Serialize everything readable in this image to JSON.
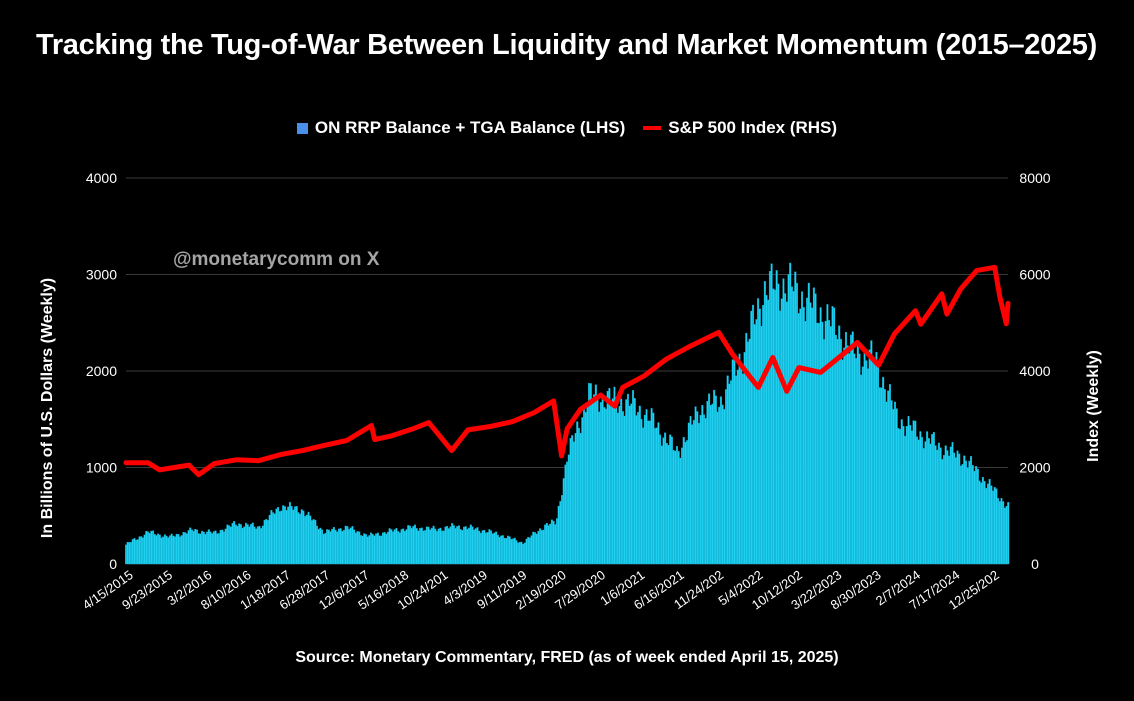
{
  "chart_data": {
    "type": "bar",
    "title": "Tracking the Tug-of-War Between Liquidity and Market Momentum (2015–2025)",
    "ylabel": "In Billions of U.S. Dollars (Weekly)",
    "y2label": "Index (Weekly)",
    "ylim": [
      0,
      4000
    ],
    "y2lim": [
      0,
      8000
    ],
    "yticks": [
      "0",
      "1000",
      "2000",
      "3000",
      "4000"
    ],
    "y2ticks": [
      "0",
      "2000",
      "4000",
      "6000",
      "8000"
    ],
    "xtick_labels": [
      "4/15/2015",
      "9/23/2015",
      "3/2/2016",
      "8/10/2016",
      "1/18/2017",
      "6/28/2017",
      "12/6/2017",
      "5/16/2018",
      "10/24/201",
      "4/3/2019",
      "9/11/2019",
      "2/19/2020",
      "7/29/2020",
      "1/6/2021",
      "6/16/2021",
      "11/24/202",
      "5/4/2022",
      "10/12/202",
      "3/22/2023",
      "8/30/2023",
      "2/7/2024",
      "7/17/2024",
      "12/25/202"
    ],
    "grid": true,
    "legend_position": "top-center",
    "x_range": [
      "4/15/2015",
      "4/15/2025"
    ],
    "series": [
      {
        "name": "ON RRP Balance + TGA Balance (LHS)",
        "type": "bar",
        "axis": "left",
        "color": "#1fd0f0",
        "x": [
          "4/15/2015",
          "7/15/2015",
          "10/15/2015",
          "1/15/2016",
          "4/15/2016",
          "7/15/2016",
          "10/15/2016",
          "1/15/2017",
          "4/15/2017",
          "7/15/2017",
          "10/15/2017",
          "1/15/2018",
          "4/15/2018",
          "7/15/2018",
          "10/15/2018",
          "1/15/2019",
          "4/15/2019",
          "7/15/2019",
          "10/15/2019",
          "1/15/2020",
          "3/1/2020",
          "4/15/2020",
          "7/15/2020",
          "10/15/2020",
          "1/15/2021",
          "4/15/2021",
          "7/15/2021",
          "10/15/2021",
          "1/15/2022",
          "4/15/2022",
          "7/15/2022",
          "10/15/2022",
          "1/15/2023",
          "4/15/2023",
          "7/15/2023",
          "10/15/2023",
          "1/15/2024",
          "4/15/2024",
          "7/15/2024",
          "10/15/2024",
          "1/15/2025",
          "4/15/2025"
        ],
        "values": [
          200,
          330,
          280,
          350,
          320,
          420,
          380,
          600,
          560,
          330,
          380,
          290,
          340,
          380,
          360,
          390,
          360,
          300,
          220,
          400,
          430,
          1100,
          1750,
          1700,
          1650,
          1450,
          1150,
          1600,
          1700,
          2200,
          2850,
          2900,
          2700,
          2500,
          2200,
          2100,
          1500,
          1350,
          1200,
          1100,
          850,
          600
        ]
      },
      {
        "name": "S&P 500 Index (RHS)",
        "type": "line",
        "axis": "right",
        "color": "#ff0000",
        "x": [
          "4/15/2015",
          "7/15/2015",
          "9/1/2015",
          "1/1/2016",
          "2/10/2016",
          "4/15/2016",
          "7/15/2016",
          "10/15/2016",
          "1/15/2017",
          "4/15/2017",
          "7/15/2017",
          "10/15/2017",
          "1/26/2018",
          "2/8/2018",
          "4/15/2018",
          "7/15/2018",
          "9/20/2018",
          "12/24/2018",
          "3/1/2019",
          "6/1/2019",
          "9/1/2019",
          "12/1/2019",
          "2/19/2020",
          "3/23/2020",
          "4/15/2020",
          "6/8/2020",
          "9/1/2020",
          "10/30/2020",
          "12/1/2020",
          "3/1/2021",
          "6/1/2021",
          "9/1/2021",
          "1/3/2022",
          "3/1/2022",
          "6/16/2022",
          "8/15/2022",
          "10/12/2022",
          "12/1/2022",
          "3/1/2023",
          "7/31/2023",
          "10/27/2023",
          "1/1/2024",
          "3/28/2024",
          "4/19/2024",
          "7/15/2024",
          "8/5/2024",
          "10/1/2024",
          "12/6/2024",
          "2/19/2025",
          "3/13/2025",
          "4/8/2025",
          "4/15/2025"
        ],
        "values": [
          2100,
          2100,
          1950,
          2050,
          1850,
          2080,
          2160,
          2140,
          2270,
          2350,
          2460,
          2560,
          2870,
          2580,
          2650,
          2800,
          2930,
          2350,
          2780,
          2850,
          2950,
          3140,
          3380,
          2240,
          2800,
          3200,
          3500,
          3270,
          3660,
          3900,
          4250,
          4500,
          4800,
          4350,
          3660,
          4280,
          3580,
          4070,
          3970,
          4590,
          4120,
          4770,
          5250,
          4970,
          5600,
          5180,
          5700,
          6080,
          6150,
          5520,
          4980,
          5400
        ]
      }
    ]
  },
  "source_note": "Source: Monetary Commentary, FRED (as of week ended April 15, 2025)",
  "watermark": "@monetarycomm on X",
  "colors": {
    "background": "#000000",
    "gridline": "#3a3a3a",
    "bar": "#1fd0f0",
    "bar_edge": "#0aa0c0",
    "line": "#ff0000",
    "legend_bar": "#4a8fe8"
  }
}
